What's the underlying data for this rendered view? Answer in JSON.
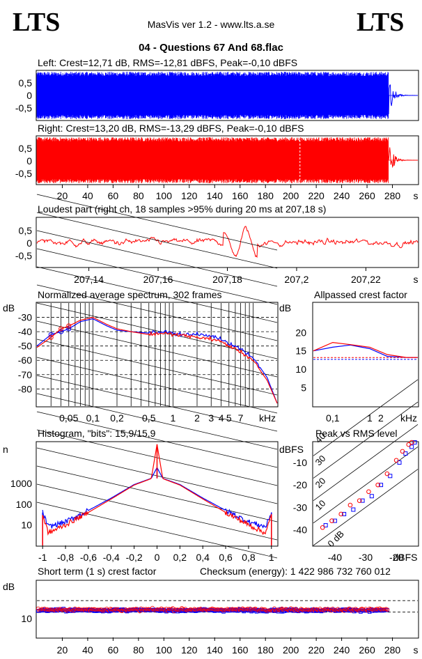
{
  "header": {
    "logo_left": "LTS",
    "logo_right": "LTS",
    "app": "MasVis ver 1.2 - www.lts.a.se",
    "file": "04 - Questions 67 And 68.flac"
  },
  "colors": {
    "left": "#0000ff",
    "right": "#ff0000"
  },
  "chart_data": [
    {
      "id": "left",
      "type": "line",
      "title": "Left: Crest=12,71 dB, RMS=-12,81 dBFS, Peak=-0,10 dBFS",
      "y_ticks": [
        "0,5",
        "0",
        "-0,5"
      ],
      "ylim": [
        -1,
        1
      ],
      "xlim": [
        0,
        300
      ],
      "audio_end_s": 277,
      "color": "#0000ff"
    },
    {
      "id": "right",
      "type": "line",
      "title": "Right: Crest=13,20 dB, RMS=-13,29 dBFS, Peak=-0,10 dBFS",
      "y_ticks": [
        "0,5",
        "0",
        "-0,5"
      ],
      "ylim": [
        -1,
        1
      ],
      "xlim": [
        0,
        300
      ],
      "x_ticks": [
        "20",
        "40",
        "60",
        "80",
        "100",
        "120",
        "140",
        "160",
        "180",
        "200",
        "220",
        "240",
        "260",
        "280"
      ],
      "x_unit": "s",
      "marker_s": 207.18,
      "color": "#ff0000"
    },
    {
      "id": "loudest",
      "type": "line",
      "title": "Loudest part (right ch, 18 samples >95% during 20 ms at 207,18 s)",
      "y_ticks": [
        "0,5",
        "0",
        "-0,5"
      ],
      "x_ticks": [
        "207,14",
        "207,16",
        "207,18",
        "207,2",
        "207,22"
      ],
      "x_unit": "s",
      "xlim": [
        207.125,
        207.235
      ],
      "color": "#ff0000"
    },
    {
      "id": "spectrum",
      "type": "line",
      "title": "Normalized average spectrum, 302 frames",
      "y_unit": "dB",
      "y_ticks": [
        "-30",
        "-40",
        "-50",
        "-60",
        "-70",
        "-80"
      ],
      "x_ticks": [
        "0,05",
        "0,1",
        "0,2",
        "0,5",
        "1",
        "2",
        "3",
        "4",
        "5",
        "7"
      ],
      "x_unit": "kHz",
      "xlim_khz": [
        0.02,
        20
      ],
      "ylim": [
        -92,
        -20
      ],
      "series": [
        {
          "color": "#0000ff",
          "x": [
            0.02,
            0.03,
            0.04,
            0.05,
            0.07,
            0.1,
            0.15,
            0.2,
            0.3,
            0.5,
            0.7,
            1,
            1.5,
            2,
            3,
            4,
            5,
            7,
            10,
            15,
            20
          ],
          "y": [
            -50,
            -42,
            -40,
            -38,
            -33,
            -31,
            -36,
            -39,
            -40,
            -41,
            -40,
            -41,
            -42,
            -42,
            -43,
            -45,
            -48,
            -52,
            -58,
            -72,
            -90
          ]
        },
        {
          "color": "#ff0000",
          "x": [
            0.02,
            0.03,
            0.04,
            0.05,
            0.07,
            0.1,
            0.15,
            0.2,
            0.3,
            0.5,
            0.7,
            1,
            1.5,
            2,
            3,
            4,
            5,
            7,
            10,
            15,
            20
          ],
          "y": [
            -51,
            -44,
            -38,
            -36,
            -32,
            -30,
            -35,
            -38,
            -40,
            -42,
            -41,
            -42,
            -43,
            -44,
            -45,
            -47,
            -50,
            -54,
            -60,
            -74,
            -90
          ]
        }
      ]
    },
    {
      "id": "allpassed",
      "type": "line",
      "title": "Allpassed crest factor",
      "y_unit": "dB",
      "y_ticks": [
        "20",
        "15",
        "10",
        "5"
      ],
      "x_ticks": [
        "0,1",
        "1",
        "2"
      ],
      "x_unit": "kHz",
      "ylim": [
        0,
        28
      ],
      "series": [
        {
          "color": "#0000ff",
          "x": [
            0.03,
            0.1,
            0.3,
            1,
            3,
            10,
            20
          ],
          "y": [
            15.0,
            16.0,
            16.6,
            15.6,
            13.5,
            13.2,
            13.2
          ],
          "ref": 12.7
        },
        {
          "color": "#ff0000",
          "x": [
            0.03,
            0.1,
            0.3,
            1,
            3,
            10,
            20
          ],
          "y": [
            15.0,
            17.3,
            16.7,
            16.0,
            14.0,
            13.2,
            13.2
          ],
          "ref": 13.2
        }
      ]
    },
    {
      "id": "histogram",
      "type": "line",
      "title": "Histogram, \"bits\": 15,9/15,9",
      "y_unit": "n",
      "y_ticks": [
        "1000",
        "100",
        "10"
      ],
      "x_ticks": [
        "-1",
        "-0,8",
        "-0,6",
        "-0,4",
        "-0,2",
        "0",
        "0,2",
        "0,4",
        "0,6",
        "0,8",
        "1"
      ],
      "xlim": [
        -1.05,
        1.05
      ],
      "series": [
        {
          "color": "#0000ff",
          "x": [
            -1,
            -0.95,
            -0.8,
            -0.6,
            -0.4,
            -0.2,
            -0.05,
            0,
            0.05,
            0.2,
            0.4,
            0.6,
            0.8,
            0.95,
            1
          ],
          "y": [
            40,
            8,
            14,
            50,
            200,
            900,
            1800,
            6000,
            1800,
            900,
            200,
            50,
            14,
            8,
            40
          ]
        },
        {
          "color": "#ff0000",
          "x": [
            -1,
            -0.95,
            -0.8,
            -0.6,
            -0.4,
            -0.2,
            -0.05,
            0,
            0.05,
            0.2,
            0.4,
            0.6,
            0.8,
            0.95,
            1
          ],
          "y": [
            30,
            4,
            10,
            40,
            180,
            850,
            1750,
            80000,
            1750,
            850,
            180,
            40,
            10,
            4,
            30
          ]
        }
      ]
    },
    {
      "id": "peak_rms",
      "type": "scatter",
      "title": "Peak vs RMS level",
      "y_unit": "dBFS",
      "x_unit": "dBFS",
      "y_ticks": [
        "-10",
        "-20",
        "-30",
        "-40"
      ],
      "x_ticks": [
        "-40",
        "-30",
        "-20"
      ],
      "diag_labels": [
        "40",
        "30",
        "20",
        "10",
        "0 dB"
      ],
      "series": [
        {
          "color": "#0000ff",
          "rms": [
            -43,
            -40,
            -37,
            -34,
            -31,
            -28,
            -25,
            -22,
            -19,
            -17,
            -15,
            -14
          ],
          "peak": [
            -38,
            -36,
            -33,
            -31,
            -27,
            -25,
            -20,
            -16,
            -10,
            -6,
            -3,
            -1
          ]
        },
        {
          "color": "#ff0000",
          "rms": [
            -44,
            -41,
            -38,
            -35,
            -32,
            -29,
            -26,
            -23,
            -20,
            -18,
            -16,
            -15
          ],
          "peak": [
            -39,
            -36,
            -33,
            -29,
            -27,
            -23,
            -20,
            -15,
            -9,
            -5,
            -2,
            -1
          ]
        }
      ]
    },
    {
      "id": "shortterm",
      "type": "scatter",
      "title": "Short term (1 s) crest factor",
      "y_unit": "dB",
      "y_ticks": [
        "10"
      ],
      "x_ticks": [
        "20",
        "40",
        "60",
        "80",
        "100",
        "120",
        "140",
        "160",
        "180",
        "200",
        "220",
        "240",
        "260",
        "280"
      ],
      "x_unit": "s",
      "xlim": [
        0,
        300
      ],
      "ylim": [
        0,
        25
      ],
      "ref_lines": [
        16.3,
        11.2
      ]
    }
  ],
  "checksum": "Checksum (energy):  1 422 986 732 760 012"
}
